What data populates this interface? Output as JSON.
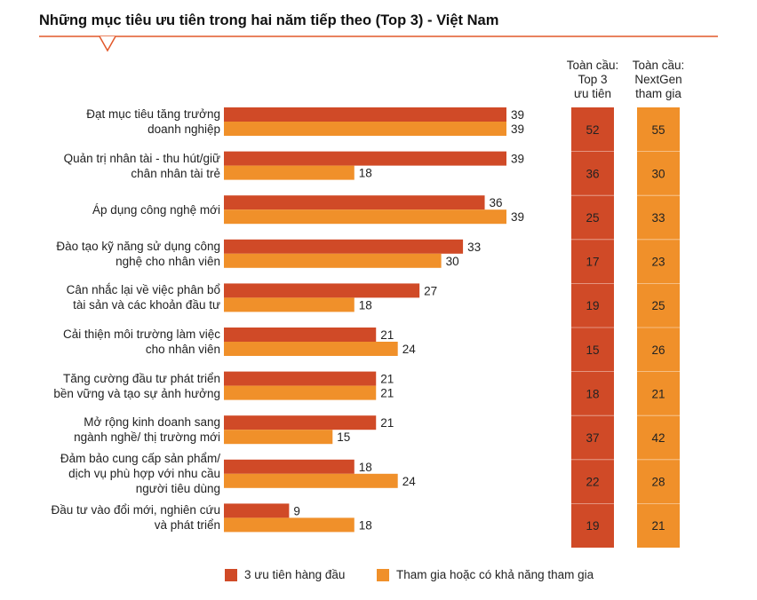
{
  "chart_data": {
    "type": "bar",
    "orientation": "horizontal",
    "title": "Những mục tiêu ưu tiên trong hai năm tiếp theo (Top 3) - Việt Nam",
    "categories": [
      [
        "Đạt mục tiêu tăng trưởng",
        "doanh nghiệp"
      ],
      [
        "Quản trị nhân tài - thu hút/giữ",
        "chân nhân tài trẻ"
      ],
      [
        "Áp dụng công nghệ mới"
      ],
      [
        "Đào tạo kỹ năng sử dụng công",
        "nghệ cho nhân viên"
      ],
      [
        "Cân nhắc lại về việc phân bổ",
        "tài sản và các khoản đầu tư"
      ],
      [
        "Cải thiện môi trường làm việc",
        "cho nhân viên"
      ],
      [
        "Tăng cường đầu tư phát triển",
        "bền vững và tạo sự ảnh hưởng"
      ],
      [
        "Mở rộng kinh doanh sang",
        "ngành nghề/ thị trường mới"
      ],
      [
        "Đảm bảo cung cấp sản phẩm/",
        "dịch vụ phù hợp với nhu cầu",
        "người tiêu dùng"
      ],
      [
        "Đầu tư vào đổi mới, nghiên cứu",
        "và phát triển"
      ]
    ],
    "series": [
      {
        "name": "3 ưu tiên hàng đầu",
        "color": "#d04a27",
        "values": [
          39,
          39,
          36,
          33,
          27,
          21,
          21,
          21,
          18,
          9
        ]
      },
      {
        "name": "Tham gia hoặc có khả năng tham gia",
        "color": "#f0902a",
        "values": [
          39,
          18,
          39,
          30,
          18,
          24,
          21,
          15,
          24,
          18
        ]
      }
    ],
    "xlim": [
      0,
      39
    ],
    "global_columns": [
      {
        "header": [
          "Toàn cầu:",
          "Top 3",
          "ưu tiên"
        ],
        "color": "#d04a27",
        "values": [
          52,
          36,
          25,
          17,
          19,
          15,
          18,
          37,
          22,
          19
        ]
      },
      {
        "header": [
          "Toàn cầu:",
          "NextGen",
          "tham gia"
        ],
        "color": "#f0902a",
        "values": [
          55,
          30,
          33,
          23,
          25,
          26,
          21,
          42,
          28,
          21
        ]
      }
    ]
  }
}
